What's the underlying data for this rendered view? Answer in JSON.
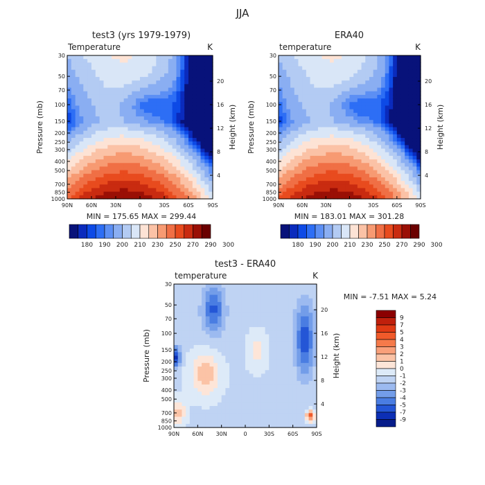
{
  "page_title": "JJA",
  "panels": [
    {
      "title": "test3 (yrs 1979-1979)",
      "left_label": "Temperature",
      "right_label": "K",
      "min_max": "MIN = 175.65   MAX = 299.44"
    },
    {
      "title": "ERA40",
      "left_label": "temperature",
      "right_label": "K",
      "min_max": "MIN = 183.01   MAX = 301.28"
    },
    {
      "title": "test3 - ERA40",
      "left_label": "temperature",
      "right_label": "K",
      "min_max": "MIN =   -7.51   MAX =    5.24"
    }
  ],
  "axes": {
    "ylabel": "Pressure (mb)",
    "y2label": "Height (km)",
    "pressure_ticks": [
      "30",
      "50",
      "70",
      "100",
      "150",
      "200",
      "250",
      "300",
      "400",
      "500",
      "700",
      "850",
      "1000"
    ],
    "height_ticks": [
      "20",
      "16",
      "12",
      "8",
      "4"
    ],
    "lat_ticks": [
      "90N",
      "60N",
      "30N",
      "0",
      "30S",
      "60S",
      "90S"
    ]
  },
  "colorbars": {
    "abs_labels": [
      "180",
      "190",
      "200",
      "210",
      "230",
      "250",
      "270",
      "290",
      "300"
    ],
    "abs_colors": [
      "#08127a",
      "#0a2bbd",
      "#0d4ae6",
      "#2d6ef5",
      "#5c8ff4",
      "#8aaef2",
      "#b3cbf3",
      "#d9e6f7",
      "#fde3d5",
      "#fbc2a6",
      "#f79a72",
      "#f06f45",
      "#e84b1e",
      "#c92b10",
      "#9a0f05",
      "#6b0000"
    ],
    "diff_labels": [
      "9",
      "7",
      "5",
      "4",
      "3",
      "2",
      "1",
      "0",
      "-1",
      "-2",
      "-3",
      "-4",
      "-5",
      "-7",
      "-9"
    ],
    "diff_colors": [
      "#8b0000",
      "#c0200c",
      "#e03a14",
      "#f05a2a",
      "#f57a4a",
      "#f9a07a",
      "#fbc3a6",
      "#fde5d8",
      "#ddeaf8",
      "#bfd3f3",
      "#9cbaf0",
      "#739de9",
      "#4a7de2",
      "#2456d6",
      "#0c2fb5",
      "#061c8a"
    ]
  },
  "chart_data": [
    {
      "type": "heatmap",
      "title": "test3 (yrs 1979-1979)",
      "xlabel": "",
      "ylabel": "Pressure (mb)",
      "y2label": "Height (km)",
      "x_ticks": [
        "90N",
        "60N",
        "30N",
        "0",
        "30S",
        "60S",
        "90S"
      ],
      "y_ticks": [
        30,
        50,
        70,
        100,
        150,
        200,
        250,
        300,
        400,
        500,
        700,
        850,
        1000
      ],
      "y_scale": "log",
      "ylim": [
        1000,
        30
      ],
      "color_levels": [
        180,
        190,
        200,
        210,
        230,
        250,
        270,
        290,
        300
      ],
      "min": 175.65,
      "max": 299.44,
      "units": "K"
    },
    {
      "type": "heatmap",
      "title": "ERA40",
      "xlabel": "",
      "ylabel": "Pressure (mb)",
      "y2label": "Height (km)",
      "x_ticks": [
        "90N",
        "60N",
        "30N",
        "0",
        "30S",
        "60S",
        "90S"
      ],
      "y_ticks": [
        30,
        50,
        70,
        100,
        150,
        200,
        250,
        300,
        400,
        500,
        700,
        850,
        1000
      ],
      "y_scale": "log",
      "ylim": [
        1000,
        30
      ],
      "color_levels": [
        180,
        190,
        200,
        210,
        230,
        250,
        270,
        290,
        300
      ],
      "min": 183.01,
      "max": 301.28,
      "units": "K"
    },
    {
      "type": "heatmap",
      "title": "test3 - ERA40",
      "xlabel": "",
      "ylabel": "Pressure (mb)",
      "y2label": "Height (km)",
      "x_ticks": [
        "90N",
        "60N",
        "30N",
        "0",
        "30S",
        "60S",
        "90S"
      ],
      "y_ticks": [
        30,
        50,
        70,
        100,
        150,
        200,
        250,
        300,
        400,
        500,
        700,
        850,
        1000
      ],
      "y_scale": "log",
      "ylim": [
        1000,
        30
      ],
      "color_levels": [
        -9,
        -7,
        -5,
        -4,
        -3,
        -2,
        -1,
        0,
        1,
        2,
        3,
        4,
        5,
        7,
        9
      ],
      "min": -7.51,
      "max": 5.24,
      "units": "K"
    }
  ]
}
